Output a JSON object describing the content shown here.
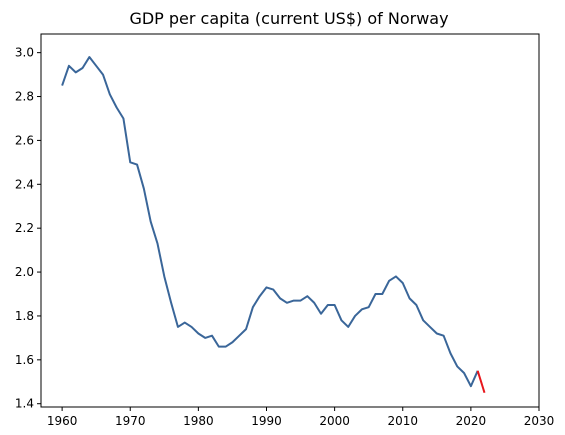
{
  "chart_data": {
    "type": "line",
    "title": "GDP per capita (current US$) of Norway",
    "xlabel": "",
    "ylabel": "",
    "xlim": [
      1956.9,
      2030
    ],
    "ylim": [
      1.385,
      3.085
    ],
    "x_ticks": [
      1960,
      1970,
      1980,
      1990,
      2000,
      2010,
      2020,
      2030
    ],
    "y_ticks": [
      1.4,
      1.6,
      1.8,
      2.0,
      2.2,
      2.4,
      2.6,
      2.8,
      3.0
    ],
    "grid": false,
    "legend": "none",
    "series": [
      {
        "color": "#3a6699",
        "x": [
          1960,
          1961,
          1962,
          1963,
          1964,
          1965,
          1966,
          1967,
          1968,
          1969,
          1970,
          1971,
          1972,
          1973,
          1974,
          1975,
          1976,
          1977,
          1978,
          1979,
          1980,
          1981,
          1982,
          1983,
          1984,
          1985,
          1986,
          1987,
          1988,
          1989,
          1990,
          1991,
          1992,
          1993,
          1994,
          1995,
          1996,
          1997,
          1998,
          1999,
          2000,
          2001,
          2002,
          2003,
          2004,
          2005,
          2006,
          2007,
          2008,
          2009,
          2010,
          2011,
          2012,
          2013,
          2014,
          2015,
          2016,
          2017,
          2018,
          2019,
          2020,
          2021
        ],
        "y": [
          2.85,
          2.94,
          2.91,
          2.93,
          2.98,
          2.94,
          2.9,
          2.81,
          2.75,
          2.7,
          2.5,
          2.49,
          2.38,
          2.23,
          2.13,
          1.98,
          1.86,
          1.75,
          1.77,
          1.75,
          1.72,
          1.7,
          1.71,
          1.66,
          1.66,
          1.68,
          1.71,
          1.74,
          1.84,
          1.89,
          1.93,
          1.92,
          1.88,
          1.86,
          1.87,
          1.87,
          1.89,
          1.86,
          1.81,
          1.85,
          1.85,
          1.78,
          1.75,
          1.8,
          1.83,
          1.84,
          1.9,
          1.9,
          1.96,
          1.98,
          1.95,
          1.88,
          1.85,
          1.78,
          1.75,
          1.72,
          1.71,
          1.63,
          1.57,
          1.54,
          1.48,
          1.55
        ]
      },
      {
        "color": "#e8161c",
        "x": [
          2021,
          2022
        ],
        "y": [
          1.55,
          1.45
        ]
      }
    ]
  }
}
